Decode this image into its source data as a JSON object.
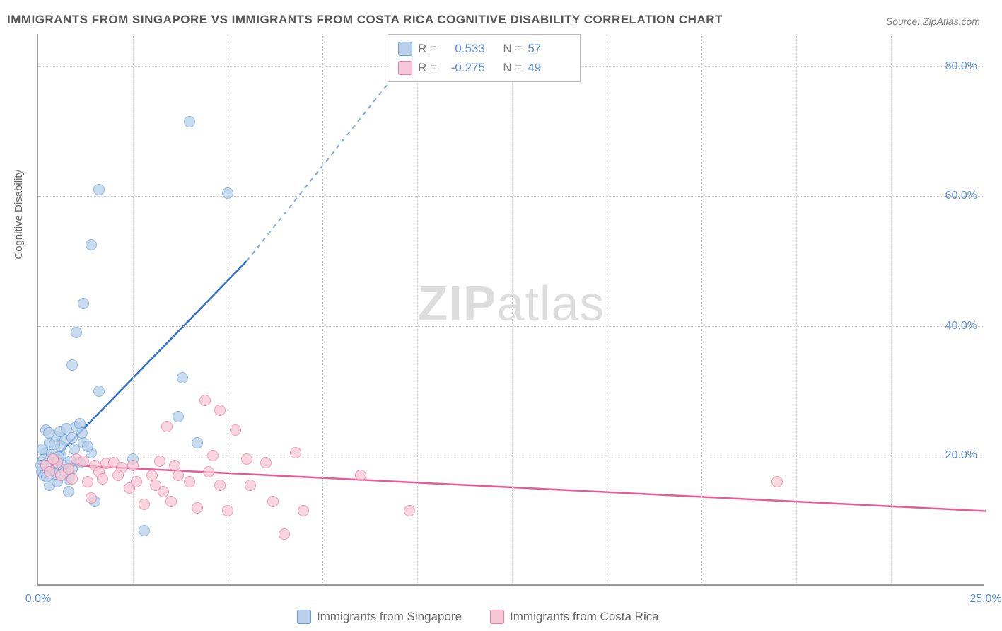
{
  "title": "IMMIGRANTS FROM SINGAPORE VS IMMIGRANTS FROM COSTA RICA COGNITIVE DISABILITY CORRELATION CHART",
  "source": "Source: ZipAtlas.com",
  "watermark_zip": "ZIP",
  "watermark_atlas": "atlas",
  "chart": {
    "type": "scatter",
    "ylabel": "Cognitive Disability",
    "background_color": "#ffffff",
    "grid_color": "#cccccc",
    "axis_color": "#999999",
    "xlim": [
      0,
      25
    ],
    "ylim": [
      0,
      85
    ],
    "xticks": [
      {
        "pos": 0.0,
        "label": "0.0%"
      },
      {
        "pos": 25.0,
        "label": "25.0%"
      }
    ],
    "xticks_minor": [
      2.5,
      5.0,
      7.5,
      10.0,
      12.5,
      15.0,
      17.5,
      20.0,
      22.5
    ],
    "yticks": [
      {
        "pos": 20.0,
        "label": "20.0%"
      },
      {
        "pos": 40.0,
        "label": "40.0%"
      },
      {
        "pos": 60.0,
        "label": "60.0%"
      },
      {
        "pos": 80.0,
        "label": "80.0%"
      }
    ],
    "marker_radius": 8,
    "series": [
      {
        "name": "Immigrants from Singapore",
        "color_fill": "#b8d0ea",
        "color_stroke": "#6a9fd4",
        "trend_color": "#2e6fd1",
        "trend": {
          "x1": 0.0,
          "y1": 17.0,
          "x2": 5.5,
          "y2": 50.0,
          "x2_dash": 10.0,
          "y2_dash": 83.0
        },
        "R": "0.533",
        "N": "57",
        "points": [
          [
            0.1,
            17.5
          ],
          [
            0.3,
            17.8
          ],
          [
            0.2,
            18.5
          ],
          [
            0.4,
            19.0
          ],
          [
            0.5,
            18.2
          ],
          [
            0.6,
            20.0
          ],
          [
            0.8,
            16.5
          ],
          [
            0.2,
            20.5
          ],
          [
            0.3,
            22.0
          ],
          [
            0.5,
            23.0
          ],
          [
            0.7,
            22.5
          ],
          [
            0.9,
            22.8
          ],
          [
            1.0,
            24.5
          ],
          [
            1.1,
            25.0
          ],
          [
            0.2,
            24.0
          ],
          [
            0.6,
            21.5
          ],
          [
            0.4,
            18.0
          ],
          [
            0.15,
            19.5
          ],
          [
            0.35,
            20.2
          ],
          [
            0.55,
            19.8
          ],
          [
            0.8,
            14.5
          ],
          [
            1.5,
            13.0
          ],
          [
            2.8,
            8.5
          ],
          [
            0.3,
            15.5
          ],
          [
            0.5,
            16.0
          ],
          [
            1.0,
            39.0
          ],
          [
            1.6,
            30.0
          ],
          [
            1.2,
            43.5
          ],
          [
            0.9,
            34.0
          ],
          [
            1.4,
            52.5
          ],
          [
            1.6,
            61.0
          ],
          [
            5.0,
            60.5
          ],
          [
            4.0,
            71.5
          ],
          [
            3.8,
            32.0
          ],
          [
            3.7,
            26.0
          ],
          [
            2.5,
            19.5
          ],
          [
            4.2,
            22.0
          ],
          [
            0.15,
            17.0
          ],
          [
            0.25,
            18.8
          ],
          [
            0.45,
            17.2
          ],
          [
            0.65,
            18.5
          ],
          [
            0.85,
            19.2
          ],
          [
            1.2,
            22.0
          ],
          [
            1.4,
            20.5
          ],
          [
            0.7,
            17.5
          ],
          [
            0.9,
            18.0
          ],
          [
            1.1,
            19.0
          ],
          [
            0.12,
            21.0
          ],
          [
            0.28,
            23.5
          ],
          [
            0.42,
            21.8
          ],
          [
            0.58,
            23.8
          ],
          [
            0.75,
            24.2
          ],
          [
            0.95,
            21.0
          ],
          [
            1.15,
            23.5
          ],
          [
            1.3,
            21.5
          ],
          [
            0.08,
            18.5
          ],
          [
            0.22,
            16.8
          ]
        ]
      },
      {
        "name": "Immigrants from Costa Rica",
        "color_fill": "#f6c8d5",
        "color_stroke": "#e87ca3",
        "trend_color": "#e75a96",
        "trend": {
          "x1": 0.0,
          "y1": 18.8,
          "x2": 25.0,
          "y2": 11.5
        },
        "R": "-0.275",
        "N": "49",
        "points": [
          [
            0.2,
            18.5
          ],
          [
            0.5,
            19.0
          ],
          [
            0.8,
            18.0
          ],
          [
            1.0,
            19.5
          ],
          [
            1.2,
            19.2
          ],
          [
            1.5,
            18.5
          ],
          [
            1.8,
            18.8
          ],
          [
            2.0,
            19.0
          ],
          [
            2.2,
            18.2
          ],
          [
            2.5,
            18.5
          ],
          [
            3.0,
            17.0
          ],
          [
            3.2,
            19.2
          ],
          [
            3.4,
            24.5
          ],
          [
            3.6,
            18.5
          ],
          [
            4.4,
            28.5
          ],
          [
            4.6,
            20.0
          ],
          [
            4.8,
            27.0
          ],
          [
            5.2,
            24.0
          ],
          [
            5.6,
            15.5
          ],
          [
            6.0,
            19.0
          ],
          [
            6.8,
            20.5
          ],
          [
            8.5,
            17.0
          ],
          [
            9.8,
            11.5
          ],
          [
            19.5,
            16.0
          ],
          [
            1.4,
            13.5
          ],
          [
            1.6,
            17.5
          ],
          [
            2.4,
            15.0
          ],
          [
            2.8,
            12.5
          ],
          [
            3.3,
            14.5
          ],
          [
            3.5,
            13.0
          ],
          [
            4.2,
            12.0
          ],
          [
            4.5,
            17.5
          ],
          [
            4.8,
            15.5
          ],
          [
            5.0,
            11.5
          ],
          [
            5.5,
            19.5
          ],
          [
            6.2,
            13.0
          ],
          [
            6.5,
            8.0
          ],
          [
            7.0,
            11.5
          ],
          [
            4.0,
            16.0
          ],
          [
            0.3,
            17.5
          ],
          [
            0.6,
            17.0
          ],
          [
            0.9,
            16.5
          ],
          [
            1.3,
            16.0
          ],
          [
            1.7,
            16.5
          ],
          [
            2.1,
            17.0
          ],
          [
            2.6,
            16.0
          ],
          [
            3.1,
            15.5
          ],
          [
            3.7,
            17.0
          ],
          [
            0.4,
            19.5
          ]
        ]
      }
    ]
  },
  "stats_label_R": "R =",
  "stats_label_N": "N ="
}
